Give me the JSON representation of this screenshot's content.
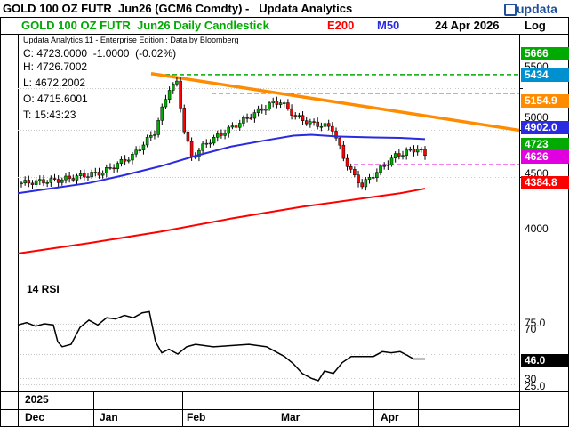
{
  "header": {
    "title": "GOLD 100 OZ FUTR  Jun26 (GCM6 Comdty) -   Updata Analytics",
    "logo_text": "updata"
  },
  "subheader": {
    "instrument": "GOLD 100 OZ FUTR  Jun26 Daily Candlestick",
    "ind1": "E200",
    "ind2": "M50",
    "date": "24 Apr 2026",
    "scale": "Log"
  },
  "info": {
    "edition": "Updata Analytics 11 - Enterprise Edition : Data by Bloomberg",
    "close": "C: 4723.0000  -1.0000  (-0.02%)",
    "high": "H: 4726.7002",
    "low": "L: 4672.2002",
    "open": "O: 4715.6001",
    "time": "T: 15:43:23"
  },
  "colors": {
    "candle_up": "#00aa00",
    "candle_down": "#ff0000",
    "m50": "#2a2ae0",
    "e200": "#ff0000",
    "trend": "#ff8c00",
    "level_green": "#00aa00",
    "level_blue": "#0090d0",
    "level_magenta": "#e000e0",
    "rsi": "#000000",
    "tag_green": "#00aa00",
    "tag_blue": "#0090d0",
    "tag_orange": "#ff8c00",
    "tag_m50": "#2a2ae0",
    "tag_e200": "#ff0000",
    "tag_magenta": "#e000e0"
  },
  "price_axis": {
    "ticks": [
      "5500",
      "5000",
      "4500",
      "4000"
    ]
  },
  "tags": [
    {
      "label": "5666",
      "color": "#00aa00"
    },
    {
      "label": "5434",
      "color": "#0090d0"
    },
    {
      "label": "5154.9",
      "color": "#ff8c00"
    },
    {
      "label": "4902.0",
      "color": "#2a2ae0"
    },
    {
      "label": "4723",
      "color": "#00aa00"
    },
    {
      "label": "4626",
      "color": "#e000e0"
    },
    {
      "label": "4384.8",
      "color": "#ff0000"
    }
  ],
  "rsi": {
    "label": "14 RSI",
    "ticks": [
      "75.0",
      "70",
      "30",
      "25.0"
    ],
    "current": "46.0"
  },
  "time_axis": {
    "year": "2025",
    "months": [
      "Dec",
      "Jan",
      "Feb",
      "Mar",
      "Apr"
    ]
  },
  "chart_data": [
    {
      "type": "candlestick",
      "title": "GOLD 100 OZ FUTR  Jun26 Daily Candlestick",
      "scale": "log",
      "ylim": [
        3750,
        5900
      ],
      "series": [
        {
          "name": "M50",
          "values": [
            4448,
            4690,
            4880,
            4920,
            4902
          ]
        },
        {
          "name": "E200",
          "values": [
            3750,
            3950,
            4200,
            4330,
            4385
          ]
        }
      ],
      "levels": [
        5666,
        5434,
        4626
      ],
      "trendline": {
        "from": 5680,
        "to": 5000
      },
      "last": {
        "open": 4715.6001,
        "high": 4726.7002,
        "low": 4672.2002,
        "close": 4723.0,
        "change": -1.0,
        "pct": -0.02
      },
      "x": [
        "Dec",
        "Jan",
        "Feb",
        "Mar",
        "Apr"
      ]
    },
    {
      "type": "line",
      "title": "14 RSI",
      "ylim": [
        20,
        95
      ],
      "series": [
        {
          "name": "14 RSI",
          "values": [
            72,
            82,
            50,
            27,
            46
          ]
        }
      ],
      "levels": [
        70,
        30
      ],
      "x": [
        "Dec",
        "Jan",
        "Feb",
        "Mar",
        "Apr"
      ]
    }
  ]
}
